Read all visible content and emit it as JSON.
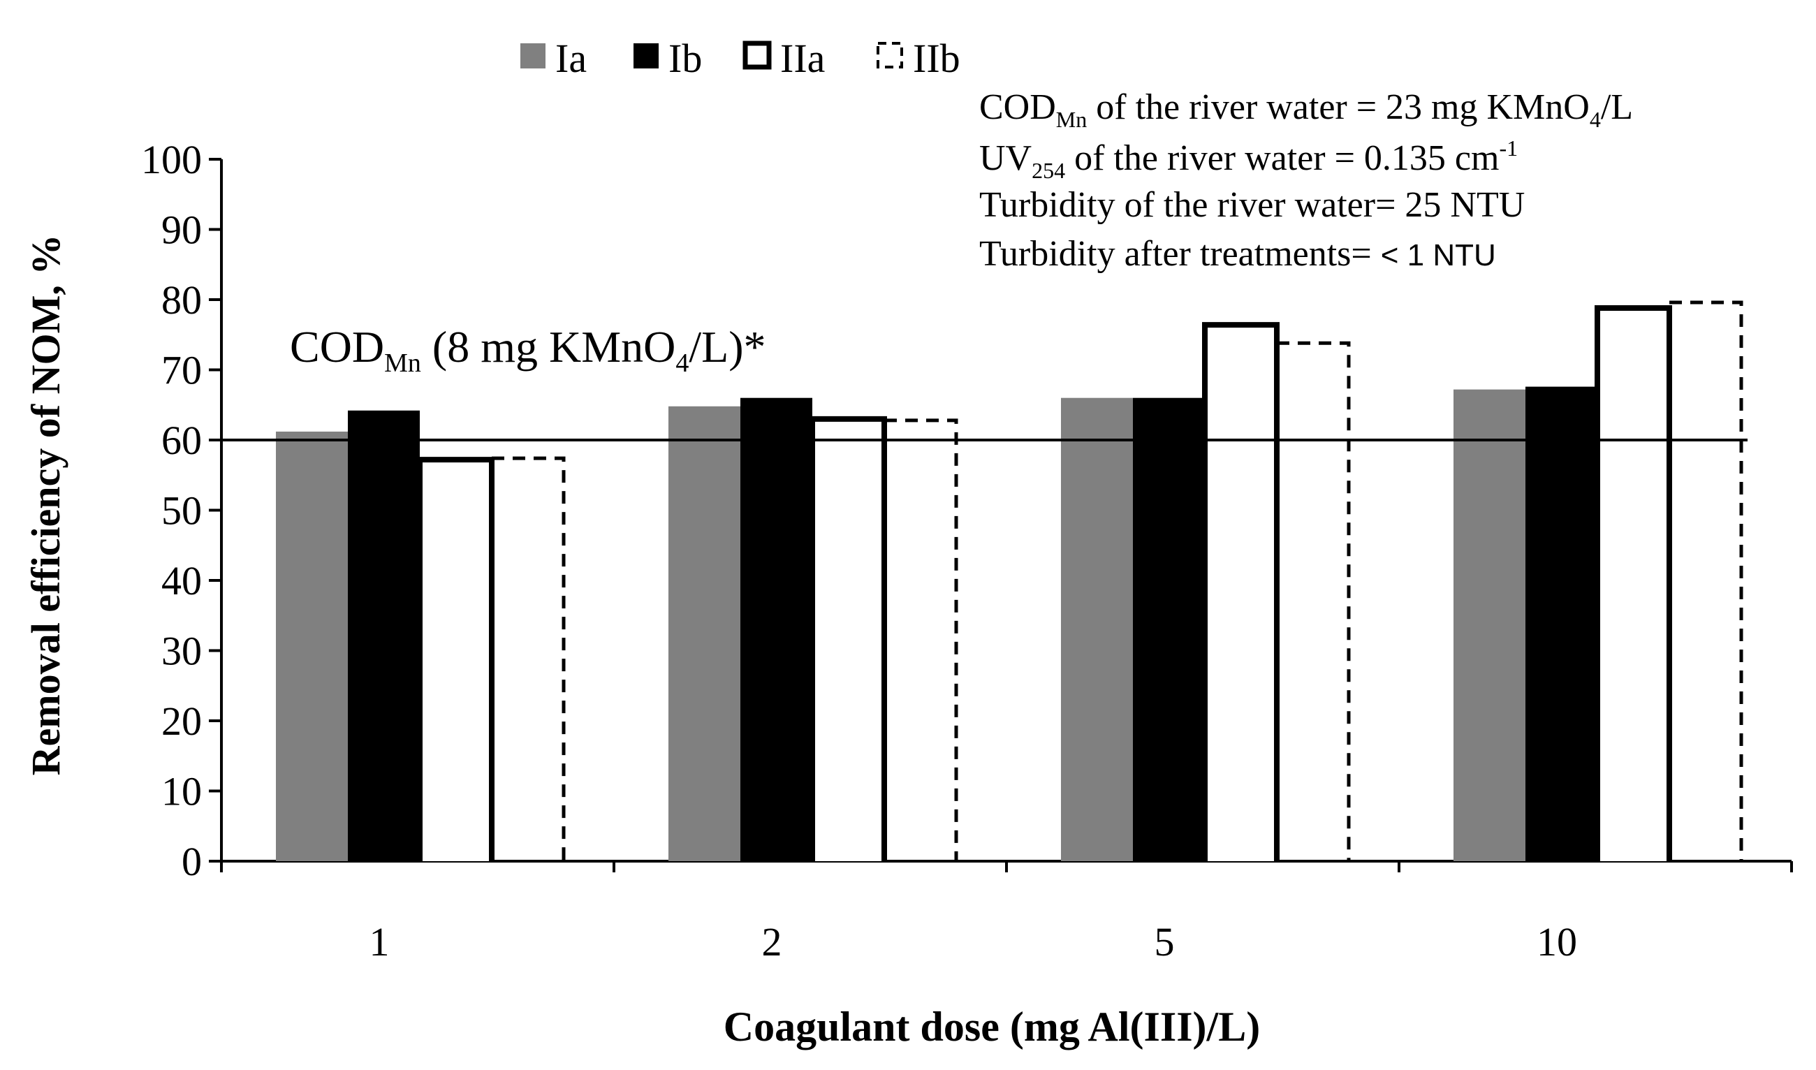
{
  "chart_data": {
    "type": "bar",
    "title": "",
    "xlabel": "Coagulant dose (mg Al(III)/L)",
    "ylabel": "Removal efficiency of NOM,  %",
    "ylim": [
      0,
      100
    ],
    "yticks": [
      "0",
      "10",
      "20",
      "30",
      "40",
      "50",
      "60",
      "70",
      "80",
      "90",
      "100"
    ],
    "categories": [
      "1",
      "2",
      "5",
      "10"
    ],
    "series": [
      {
        "name": "Ia",
        "style": "solid-gray",
        "values": [
          61.2,
          64.8,
          66.0,
          67.2
        ]
      },
      {
        "name": "Ib",
        "style": "solid-black",
        "values": [
          64.2,
          66.0,
          66.0,
          67.6
        ]
      },
      {
        "name": "IIa",
        "style": "open-solid-outline",
        "values": [
          57.2,
          63.0,
          76.4,
          78.8
        ]
      },
      {
        "name": "IIb",
        "style": "open-dashed-outline",
        "values": [
          57.4,
          62.8,
          73.8,
          79.6
        ]
      }
    ],
    "reference_line": {
      "value": 60,
      "label_main": "COD",
      "label_sub": "Mn",
      "label_mid": " (8 mg KMnO",
      "label_sub2": "4",
      "label_end": "/L)*"
    },
    "annotations": {
      "line1_main": "COD",
      "line1_sub": "Mn",
      "line1_text": " of  the river water = 23 mg KMnO",
      "line1_sub2": "4",
      "line1_end": "/L",
      "line2_main": "UV",
      "line2_sub": "254",
      "line2_text": " of the river water = 0.135 cm",
      "line2_sup": "-1",
      "line3": "Turbidity of the river water= 25 NTU",
      "line4_text": "Turbidity after treatments= ",
      "line4_value": "< 1 NTU"
    },
    "legend_position": "top-left",
    "colors": {
      "Ia": "#808080",
      "Ib": "#000000",
      "outline": "#000000",
      "axis": "#000000"
    }
  }
}
